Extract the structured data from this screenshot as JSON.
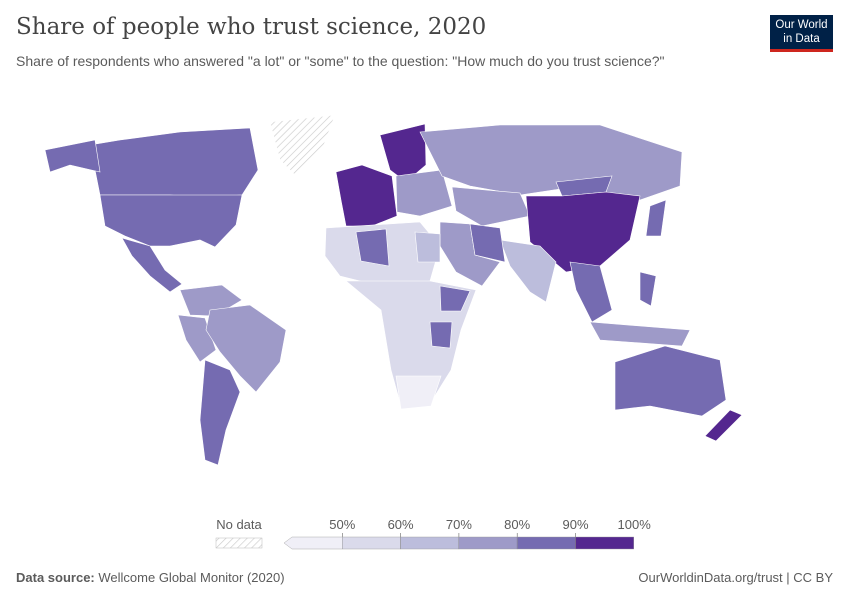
{
  "header": {
    "title": "Share of people who trust science, 2020",
    "subtitle": "Share of respondents who answered \"a lot\" or \"some\" to the question: \"How much do you trust science?\"",
    "logo_line1": "Our World",
    "logo_line2": "in Data"
  },
  "footer": {
    "source_label": "Data source:",
    "source_value": "Wellcome Global Monitor (2020)",
    "url": "OurWorldinData.org/trust | CC BY"
  },
  "chart_data": {
    "type": "choropleth",
    "year": 2020,
    "unit": "%",
    "legend": {
      "no_data_label": "No data",
      "no_data_color": "#e6e6e6",
      "bins": [
        {
          "max": 50,
          "label": "50%",
          "color": "#f0eff7"
        },
        {
          "min": 50,
          "max": 60,
          "label": "60%",
          "color": "#dadaeb"
        },
        {
          "min": 60,
          "max": 70,
          "label": "70%",
          "color": "#bcbddc"
        },
        {
          "min": 70,
          "max": 80,
          "label": "80%",
          "color": "#9e9ac8"
        },
        {
          "min": 80,
          "max": 90,
          "label": "90%",
          "color": "#756bb1"
        },
        {
          "min": 90,
          "max": 100,
          "label": "100%",
          "color": "#54278f"
        }
      ],
      "placement": "bottom-center"
    },
    "regions": [
      {
        "name": "Canada",
        "value": 85
      },
      {
        "name": "United States",
        "value": 84
      },
      {
        "name": "Alaska (US)",
        "value": 84
      },
      {
        "name": "Mexico",
        "value": 82
      },
      {
        "name": "Greenland",
        "value": null
      },
      {
        "name": "Colombia / Venezuela",
        "value": 75
      },
      {
        "name": "Peru / Ecuador",
        "value": 73
      },
      {
        "name": "Brazil",
        "value": 76
      },
      {
        "name": "Argentina / Chile",
        "value": 86
      },
      {
        "name": "Western Europe",
        "value": 92
      },
      {
        "name": "Nordic countries",
        "value": 94
      },
      {
        "name": "Eastern Europe",
        "value": 78
      },
      {
        "name": "Russia",
        "value": 76
      },
      {
        "name": "Kazakhstan / Central Asia",
        "value": 78
      },
      {
        "name": "Mongolia",
        "value": 82
      },
      {
        "name": "China",
        "value": 93
      },
      {
        "name": "India",
        "value": 67
      },
      {
        "name": "Southeast Asia",
        "value": 86
      },
      {
        "name": "Middle East",
        "value": 74
      },
      {
        "name": "Iran",
        "value": 84
      },
      {
        "name": "Japan",
        "value": 87
      },
      {
        "name": "Philippines",
        "value": 84
      },
      {
        "name": "Indonesia",
        "value": 72
      },
      {
        "name": "Australia",
        "value": 86
      },
      {
        "name": "New Zealand",
        "value": 93
      },
      {
        "name": "North Africa",
        "value": 55
      },
      {
        "name": "Algeria",
        "value": 81
      },
      {
        "name": "Egypt",
        "value": 65
      },
      {
        "name": "Sub-Saharan Africa",
        "value": 54
      },
      {
        "name": "Ethiopia",
        "value": 82
      },
      {
        "name": "Tanzania",
        "value": 86
      },
      {
        "name": "South Africa",
        "value": 48
      }
    ]
  }
}
